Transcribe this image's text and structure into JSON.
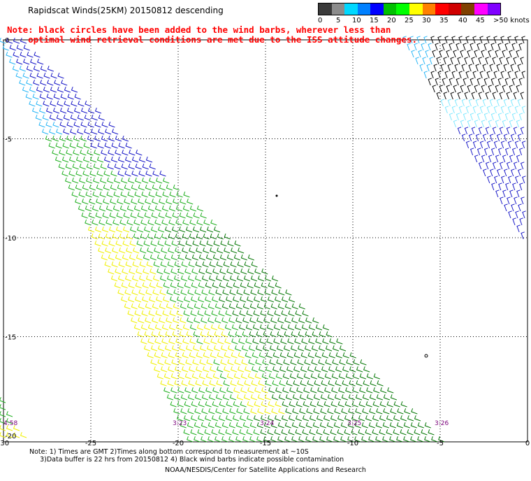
{
  "title": "Rapidscat Winds(25KM) 20150812 descending",
  "legend": {
    "labels": [
      "0",
      "5",
      "10",
      "15",
      "20",
      "25",
      "30",
      "35",
      "40",
      "45",
      ">50 knots"
    ],
    "colors": [
      "#3a3a3a",
      "#8c8c8c",
      "#00d8ff",
      "#0080ff",
      "#0000ff",
      "#00c000",
      "#00ff00",
      "#ffff00",
      "#ff8000",
      "#ff0000",
      "#d00000",
      "#804000",
      "#ff00ff",
      "#8000ff"
    ]
  },
  "warning": {
    "line1": "Note: black circles have been added to the wind barbs, wherever less than",
    "line2": "optimal wind retrieval conditions are met due to the ISS attitude changes."
  },
  "map": {
    "lon_ticks": [
      "-30",
      "-25",
      "-20",
      "-15",
      "-10",
      "-5",
      "0"
    ],
    "lat_ticks": [
      "0",
      "-5",
      "-10",
      "-15",
      "-20"
    ],
    "time_labels": [
      "4:58",
      "3:23",
      "3:24",
      "3:25",
      "3:26"
    ],
    "colors": {
      "grid": "#000000",
      "time": "#7a007a",
      "blue": "#1a1ac8",
      "cyan": "#29b6f6",
      "lightcyan": "#7fe8ff",
      "green": "#22b022",
      "darkgreen": "#0a7a0a",
      "yellow": "#f0f000",
      "black": "#000000"
    }
  },
  "footer": {
    "line1": "Note: 1) Times are GMT 2)Times along bottom correspond to measurement at ~10S",
    "line2": "3)Data buffer is 22 hrs from 20150812 4) Black wind barbs indicate possible contamination",
    "credit": "NOAA/NESDIS/Center for Satellite Applications and Research"
  }
}
